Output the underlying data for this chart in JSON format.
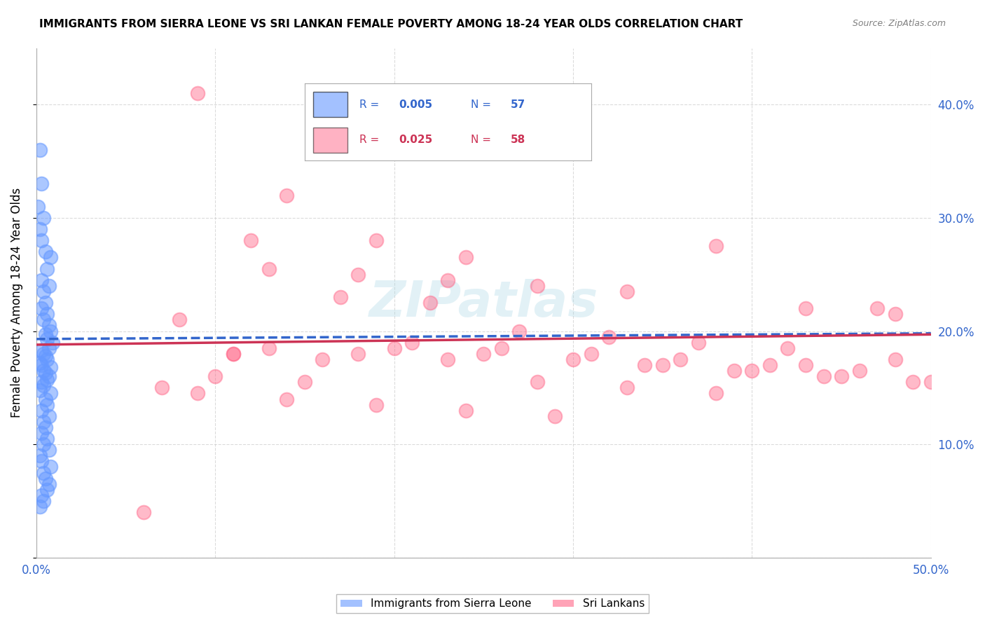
{
  "title": "IMMIGRANTS FROM SIERRA LEONE VS SRI LANKAN FEMALE POVERTY AMONG 18-24 YEAR OLDS CORRELATION CHART",
  "source": "Source: ZipAtlas.com",
  "ylabel": "Female Poverty Among 18-24 Year Olds",
  "xlim": [
    0.0,
    0.5
  ],
  "ylim": [
    0.0,
    0.45
  ],
  "right_yticks": [
    0.1,
    0.2,
    0.3,
    0.4
  ],
  "right_yticklabels": [
    "10.0%",
    "20.0%",
    "30.0%",
    "40.0%"
  ],
  "watermark": "ZIPatlas",
  "legend_r1": "R = 0.005",
  "legend_n1": "N = 57",
  "legend_r2": "R = 0.025",
  "legend_n2": "N = 58",
  "blue_color": "#6699ff",
  "pink_color": "#ff6688",
  "blue_line_color": "#3366cc",
  "pink_line_color": "#cc3355",
  "sierra_leone_x": [
    0.002,
    0.003,
    0.001,
    0.004,
    0.002,
    0.003,
    0.005,
    0.008,
    0.006,
    0.003,
    0.007,
    0.004,
    0.005,
    0.003,
    0.006,
    0.004,
    0.007,
    0.008,
    0.005,
    0.006,
    0.009,
    0.007,
    0.003,
    0.004,
    0.005,
    0.006,
    0.002,
    0.003,
    0.008,
    0.004,
    0.005,
    0.007,
    0.006,
    0.003,
    0.004,
    0.002,
    0.008,
    0.005,
    0.006,
    0.003,
    0.007,
    0.004,
    0.005,
    0.003,
    0.006,
    0.004,
    0.007,
    0.002,
    0.003,
    0.008,
    0.004,
    0.005,
    0.007,
    0.006,
    0.003,
    0.004,
    0.002
  ],
  "sierra_leone_y": [
    0.36,
    0.33,
    0.31,
    0.3,
    0.29,
    0.28,
    0.27,
    0.265,
    0.255,
    0.245,
    0.24,
    0.235,
    0.225,
    0.22,
    0.215,
    0.21,
    0.205,
    0.2,
    0.197,
    0.193,
    0.19,
    0.185,
    0.183,
    0.18,
    0.178,
    0.175,
    0.172,
    0.17,
    0.168,
    0.165,
    0.163,
    0.16,
    0.157,
    0.155,
    0.152,
    0.148,
    0.145,
    0.14,
    0.135,
    0.13,
    0.125,
    0.12,
    0.115,
    0.11,
    0.105,
    0.1,
    0.095,
    0.09,
    0.085,
    0.08,
    0.075,
    0.07,
    0.065,
    0.06,
    0.055,
    0.05,
    0.045
  ],
  "sri_lankan_x": [
    0.09,
    0.14,
    0.19,
    0.24,
    0.13,
    0.18,
    0.23,
    0.28,
    0.33,
    0.38,
    0.43,
    0.48,
    0.08,
    0.12,
    0.17,
    0.22,
    0.27,
    0.32,
    0.37,
    0.42,
    0.47,
    0.11,
    0.16,
    0.21,
    0.26,
    0.31,
    0.36,
    0.41,
    0.46,
    0.1,
    0.15,
    0.2,
    0.25,
    0.3,
    0.35,
    0.4,
    0.45,
    0.5,
    0.07,
    0.13,
    0.18,
    0.23,
    0.28,
    0.33,
    0.38,
    0.43,
    0.48,
    0.09,
    0.14,
    0.19,
    0.24,
    0.29,
    0.34,
    0.39,
    0.44,
    0.49,
    0.06,
    0.11
  ],
  "sri_lankan_y": [
    0.41,
    0.32,
    0.28,
    0.265,
    0.255,
    0.25,
    0.245,
    0.24,
    0.235,
    0.275,
    0.22,
    0.215,
    0.21,
    0.28,
    0.23,
    0.225,
    0.2,
    0.195,
    0.19,
    0.185,
    0.22,
    0.18,
    0.175,
    0.19,
    0.185,
    0.18,
    0.175,
    0.17,
    0.165,
    0.16,
    0.155,
    0.185,
    0.18,
    0.175,
    0.17,
    0.165,
    0.16,
    0.155,
    0.15,
    0.185,
    0.18,
    0.175,
    0.155,
    0.15,
    0.145,
    0.17,
    0.175,
    0.145,
    0.14,
    0.135,
    0.13,
    0.125,
    0.17,
    0.165,
    0.16,
    0.155,
    0.04,
    0.18
  ],
  "blue_trendline_x": [
    0.0,
    0.5
  ],
  "blue_trendline_y": [
    0.193,
    0.198
  ],
  "pink_trendline_x": [
    0.0,
    0.5
  ],
  "pink_trendline_y": [
    0.188,
    0.197
  ],
  "background_color": "#ffffff",
  "grid_color": "#cccccc",
  "legend_label_blue": "Immigrants from Sierra Leone",
  "legend_label_pink": "Sri Lankans"
}
